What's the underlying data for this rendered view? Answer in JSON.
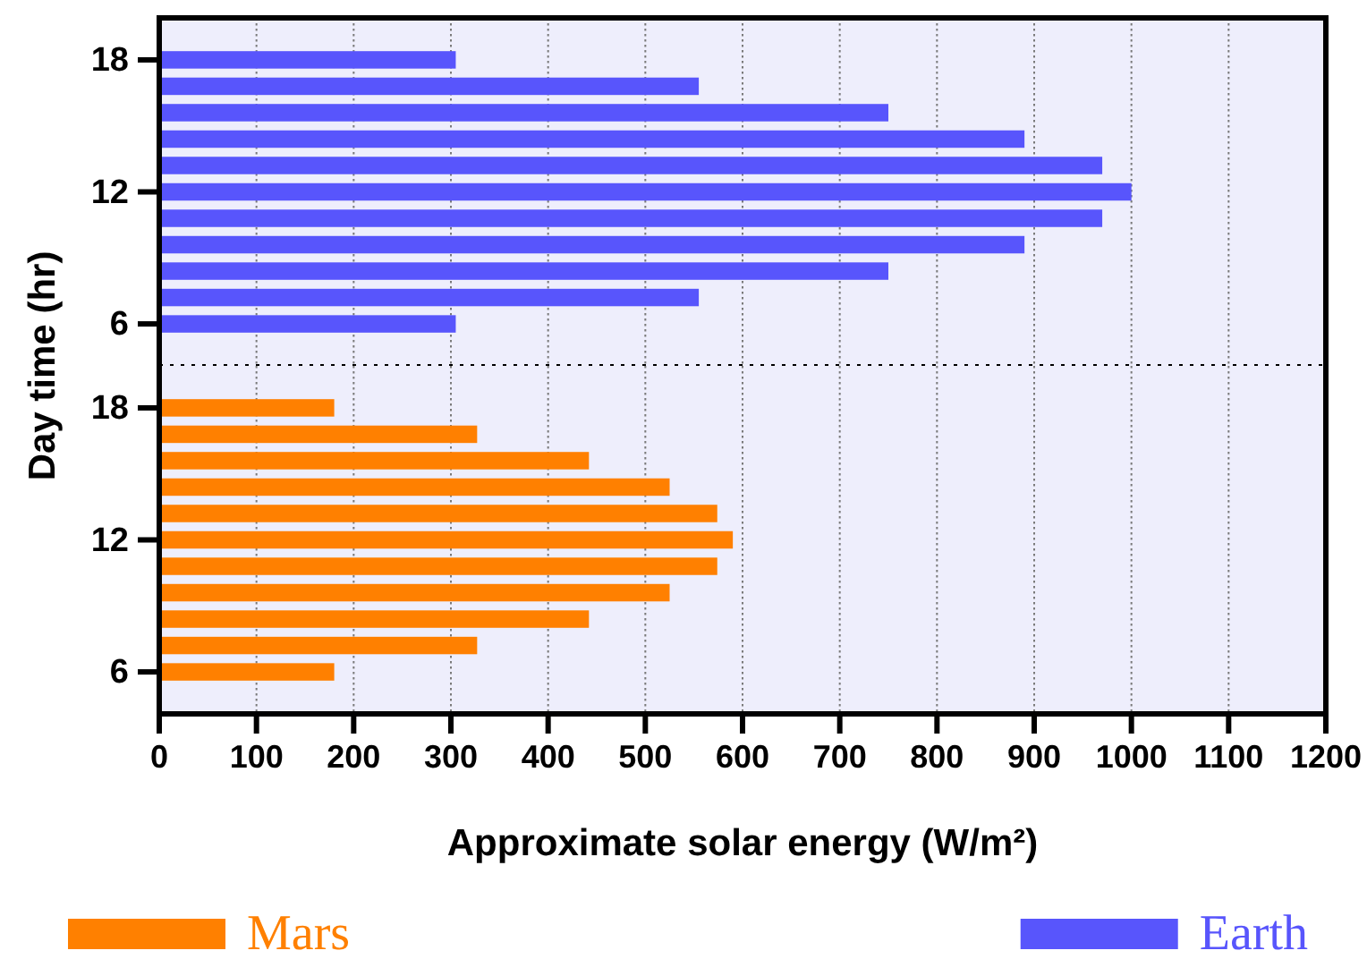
{
  "chart_data": [
    {
      "type": "bar",
      "orientation": "horizontal",
      "ylabel": "Day time (hr)",
      "categories": [
        "18",
        null,
        null,
        null,
        null,
        "12",
        null,
        null,
        null,
        null,
        "6"
      ],
      "series": [
        {
          "name": "Earth",
          "color": "#5855fc",
          "values": [
            305,
            555,
            750,
            890,
            970,
            1000,
            970,
            890,
            750,
            555,
            305
          ]
        }
      ],
      "xlim": [
        0,
        1200
      ],
      "xticks": [
        0,
        100,
        200,
        300,
        400,
        500,
        600,
        700,
        800,
        900,
        1000,
        1100,
        1200
      ],
      "grid": "x",
      "tick_labels": "y",
      "legend": "bottom right"
    },
    {
      "type": "bar",
      "orientation": "horizontal",
      "xlabel": "Approximate solar energy (W/m²)",
      "categories": [
        "18",
        null,
        null,
        null,
        null,
        "12",
        null,
        null,
        null,
        null,
        "6"
      ],
      "series": [
        {
          "name": "Mars",
          "color": "#ff8000",
          "values": [
            180,
            327,
            442,
            525,
            574,
            590,
            574,
            525,
            442,
            327,
            180
          ]
        }
      ],
      "xlim": [
        0,
        1200
      ],
      "xticks": [
        0,
        100,
        200,
        300,
        400,
        500,
        600,
        700,
        800,
        900,
        1000,
        1100,
        1200
      ],
      "grid": "x",
      "legend": "bottom left"
    }
  ]
}
